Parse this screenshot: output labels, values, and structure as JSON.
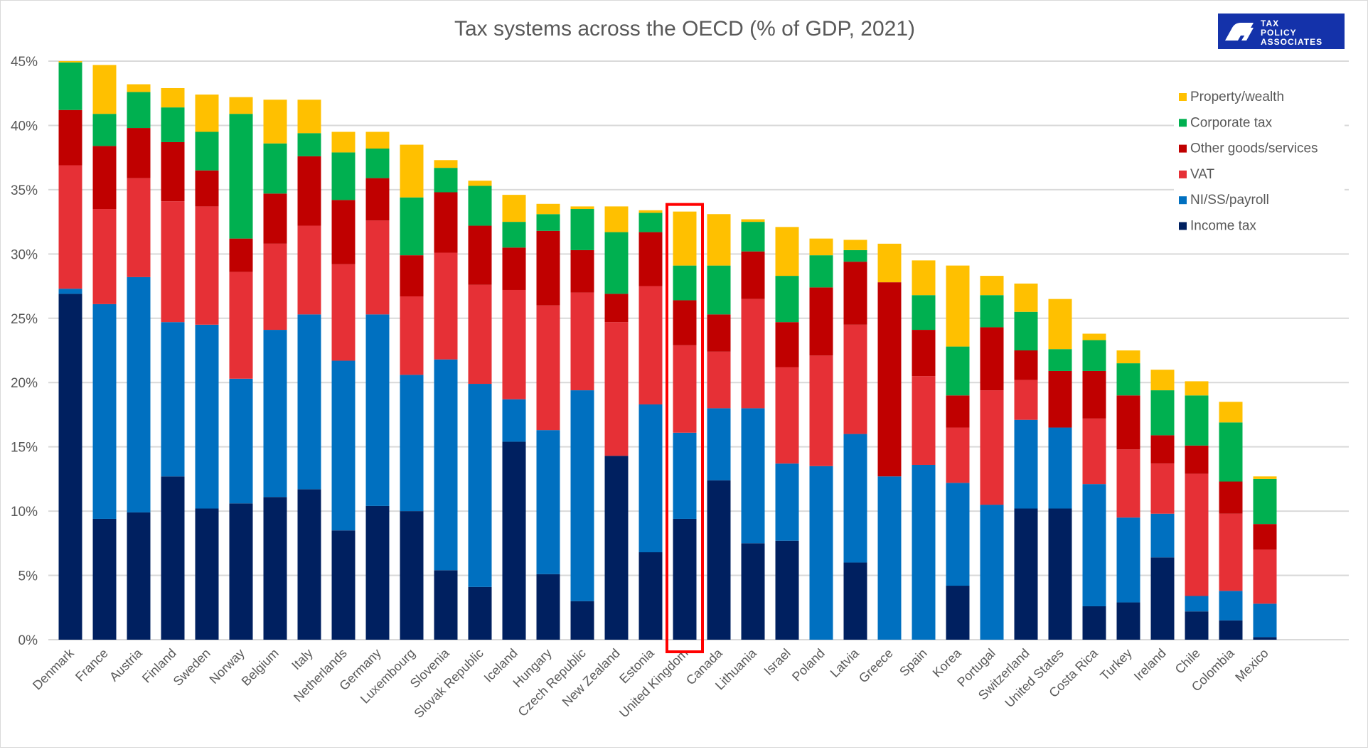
{
  "chart_data": {
    "type": "bar",
    "stacked": true,
    "title": "Tax systems across the OECD (% of GDP, 2021)",
    "xlabel": "",
    "ylabel": "",
    "ylim": [
      0,
      45
    ],
    "yticks": [
      "0%",
      "5%",
      "10%",
      "15%",
      "20%",
      "25%",
      "30%",
      "35%",
      "40%",
      "45%"
    ],
    "grid": true,
    "legend_position": "right",
    "highlighted_category": "United Kingdom",
    "highlight_color": "#ff0000",
    "categories": [
      "Denmark",
      "France",
      "Austria",
      "Finland",
      "Sweden",
      "Norway",
      "Belgium",
      "Italy",
      "Netherlands",
      "Germany",
      "Luxembourg",
      "Slovenia",
      "Slovak Republic",
      "Iceland",
      "Hungary",
      "Czech Republic",
      "New Zealand",
      "Estonia",
      "United Kingdom",
      "Canada",
      "Lithuania",
      "Israel",
      "Poland",
      "Latvia",
      "Greece",
      "Spain",
      "Korea",
      "Portugal",
      "Switzerland",
      "United States",
      "Costa Rica",
      "Turkey",
      "Ireland",
      "Chile",
      "Colombia",
      "Mexico"
    ],
    "series": [
      {
        "name": "Income tax",
        "color": "#002060",
        "values": [
          26.9,
          9.4,
          9.9,
          12.7,
          10.2,
          10.6,
          11.1,
          11.7,
          8.5,
          10.4,
          10.0,
          5.4,
          4.1,
          15.4,
          5.1,
          3.0,
          14.3,
          6.8,
          9.4,
          12.4,
          7.5,
          7.7,
          0,
          6.0,
          0,
          0,
          4.2,
          0,
          10.2,
          10.2,
          2.6,
          2.9,
          6.4,
          2.2,
          1.5,
          0.2
        ]
      },
      {
        "name": "NI/SS/payroll",
        "color": "#0070c0",
        "values": [
          0.4,
          16.7,
          18.3,
          12.0,
          14.3,
          9.7,
          13.0,
          13.6,
          13.2,
          14.9,
          10.6,
          16.4,
          15.8,
          3.3,
          11.2,
          16.4,
          0,
          11.5,
          6.7,
          5.6,
          10.5,
          6.0,
          13.5,
          10.0,
          12.7,
          13.6,
          8.0,
          10.5,
          6.9,
          6.3,
          9.5,
          6.6,
          3.4,
          1.2,
          2.3,
          2.6
        ]
      },
      {
        "name": "VAT",
        "color": "#e63036",
        "values": [
          9.6,
          7.4,
          7.7,
          9.4,
          9.2,
          8.3,
          6.7,
          6.9,
          7.5,
          7.3,
          6.1,
          8.3,
          7.7,
          8.5,
          9.7,
          7.6,
          10.4,
          9.2,
          6.8,
          4.4,
          8.5,
          7.5,
          8.6,
          8.5,
          0,
          6.9,
          4.3,
          8.9,
          3.1,
          0,
          5.1,
          5.3,
          3.9,
          9.5,
          6.0,
          4.2
        ]
      },
      {
        "name": "Other goods/services",
        "color": "#c00000",
        "values": [
          4.3,
          4.9,
          3.9,
          4.6,
          2.8,
          2.6,
          3.9,
          5.4,
          5.0,
          3.3,
          3.2,
          4.7,
          4.6,
          3.3,
          5.8,
          3.3,
          2.2,
          4.2,
          3.5,
          2.9,
          3.7,
          3.5,
          5.3,
          4.9,
          15.1,
          3.6,
          2.5,
          4.9,
          2.3,
          4.4,
          3.7,
          4.2,
          2.2,
          2.2,
          2.5,
          2.0
        ]
      },
      {
        "name": "Corporate tax",
        "color": "#00b050",
        "values": [
          3.7,
          2.5,
          2.8,
          2.7,
          3.0,
          9.7,
          3.9,
          1.8,
          3.7,
          2.3,
          4.5,
          1.9,
          3.1,
          2.0,
          1.3,
          3.2,
          4.8,
          1.5,
          2.7,
          3.8,
          2.3,
          3.6,
          2.5,
          0.9,
          0,
          2.7,
          3.8,
          2.5,
          3.0,
          1.7,
          2.4,
          2.5,
          3.5,
          3.9,
          4.6,
          3.5
        ]
      },
      {
        "name": "Property/wealth",
        "color": "#ffc000",
        "values": [
          0.1,
          3.8,
          0.6,
          1.5,
          2.9,
          1.3,
          3.4,
          2.6,
          1.6,
          1.3,
          4.1,
          0.6,
          0.4,
          2.1,
          0.8,
          0.2,
          2.0,
          0.2,
          4.2,
          4.0,
          0.2,
          3.8,
          1.3,
          0.8,
          3.0,
          2.7,
          6.3,
          1.5,
          2.2,
          3.9,
          0.5,
          1.0,
          1.6,
          1.1,
          1.6,
          0.2
        ]
      }
    ]
  },
  "logo": {
    "lines": [
      "TAX",
      "POLICY",
      "ASSOCIATES"
    ],
    "color": "#1432aa"
  }
}
